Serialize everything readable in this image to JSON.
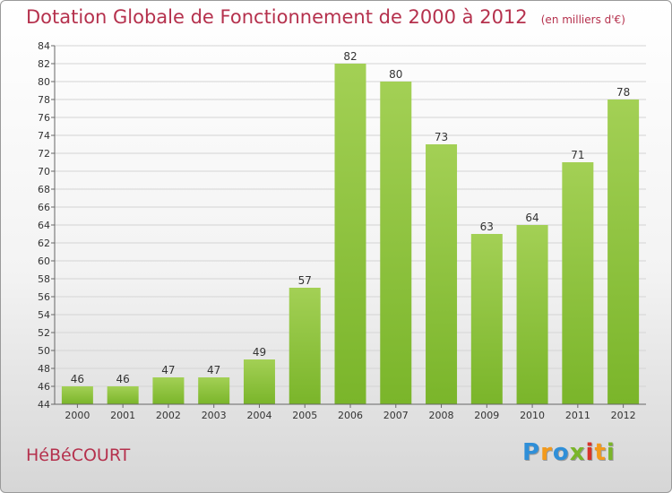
{
  "chart_data": {
    "type": "bar",
    "title": "Dotation Globale de Fonctionnement de 2000 à 2012",
    "subtitle": "(en milliers d'€)",
    "categories": [
      "2000",
      "2001",
      "2002",
      "2003",
      "2004",
      "2005",
      "2006",
      "2007",
      "2008",
      "2009",
      "2010",
      "2011",
      "2012"
    ],
    "values": [
      46,
      46,
      47,
      47,
      49,
      57,
      82,
      80,
      73,
      63,
      64,
      71,
      78
    ],
    "ylim": [
      44,
      84
    ],
    "yticks": [
      44,
      46,
      48,
      50,
      52,
      54,
      56,
      58,
      60,
      62,
      64,
      66,
      68,
      70,
      72,
      74,
      76,
      78,
      80,
      82,
      84
    ],
    "grid": true,
    "bar_color": "#7ab52a",
    "bar_color_light": "#a3d055"
  },
  "commune": "HéBéCOURT",
  "logo": {
    "letters": [
      "P",
      "r",
      "o",
      "x",
      "i",
      "t",
      "i"
    ],
    "colors": [
      "#2f8fd8",
      "#f39a1c",
      "#2f8fd8",
      "#7ab52a",
      "#d8322a",
      "#f39a1c",
      "#7ab52a"
    ]
  }
}
